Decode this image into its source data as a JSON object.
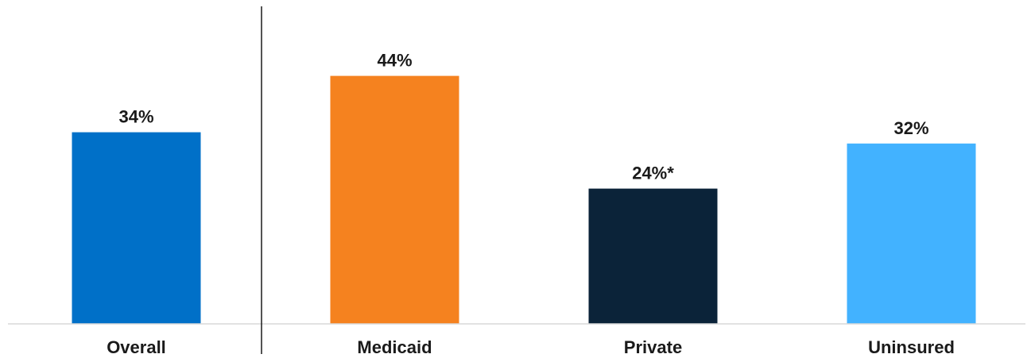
{
  "chart_data": {
    "type": "bar",
    "categories": [
      "Overall",
      "Medicaid",
      "Private",
      "Uninsured"
    ],
    "values": [
      34,
      44,
      24,
      32
    ],
    "value_labels": [
      "34%",
      "44%",
      "24%*",
      "32%"
    ],
    "colors": [
      "#0070C8",
      "#F5821F",
      "#0B2339",
      "#42B2FF"
    ],
    "title": "",
    "xlabel": "",
    "ylabel": "",
    "ylim": [
      0,
      50
    ],
    "grid": false,
    "legend": "none",
    "separator_after_category": "Overall"
  }
}
